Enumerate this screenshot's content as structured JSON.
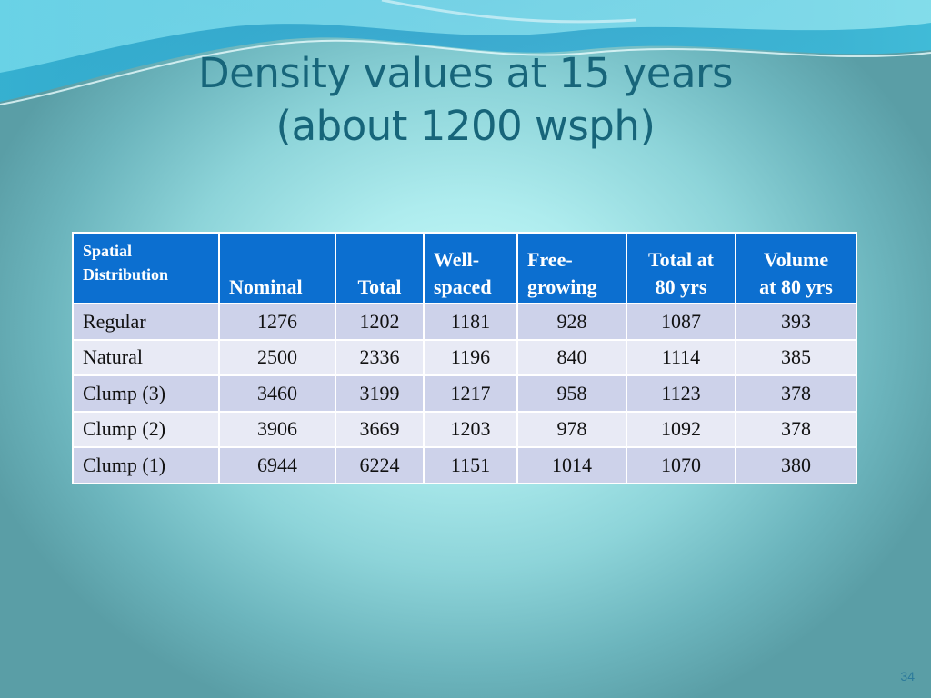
{
  "slide": {
    "title_line1": "Density values at 15 years",
    "title_line2": "(about 1200 wsph)",
    "page_number": "34"
  },
  "table": {
    "headers": [
      {
        "line1": "Spatial",
        "line2": "Distribution"
      },
      {
        "line1": "",
        "line2": "Nominal"
      },
      {
        "line1": "",
        "line2": "Total"
      },
      {
        "line1": "Well-",
        "line2": "spaced"
      },
      {
        "line1": "Free-",
        "line2": "growing"
      },
      {
        "line1": "Total at",
        "line2": "80 yrs"
      },
      {
        "line1": "Volume",
        "line2": "at  80 yrs"
      }
    ],
    "rows": [
      [
        "Regular",
        "1276",
        "1202",
        "1181",
        "928",
        "1087",
        "393"
      ],
      [
        "Natural",
        "2500",
        "2336",
        "1196",
        "840",
        "1114",
        "385"
      ],
      [
        "Clump (3)",
        "3460",
        "3199",
        "1217",
        "958",
        "1123",
        "378"
      ],
      [
        "Clump (2)",
        "3906",
        "3669",
        "1203",
        "978",
        "1092",
        "378"
      ],
      [
        "Clump (1)",
        "6944",
        "6224",
        "1151",
        "1014",
        "1070",
        "380"
      ]
    ]
  },
  "colors": {
    "title": "#17657a",
    "header_bg": "#0c6fd0",
    "row_odd": "#cdd2ea",
    "row_even": "#e8eaf5"
  }
}
